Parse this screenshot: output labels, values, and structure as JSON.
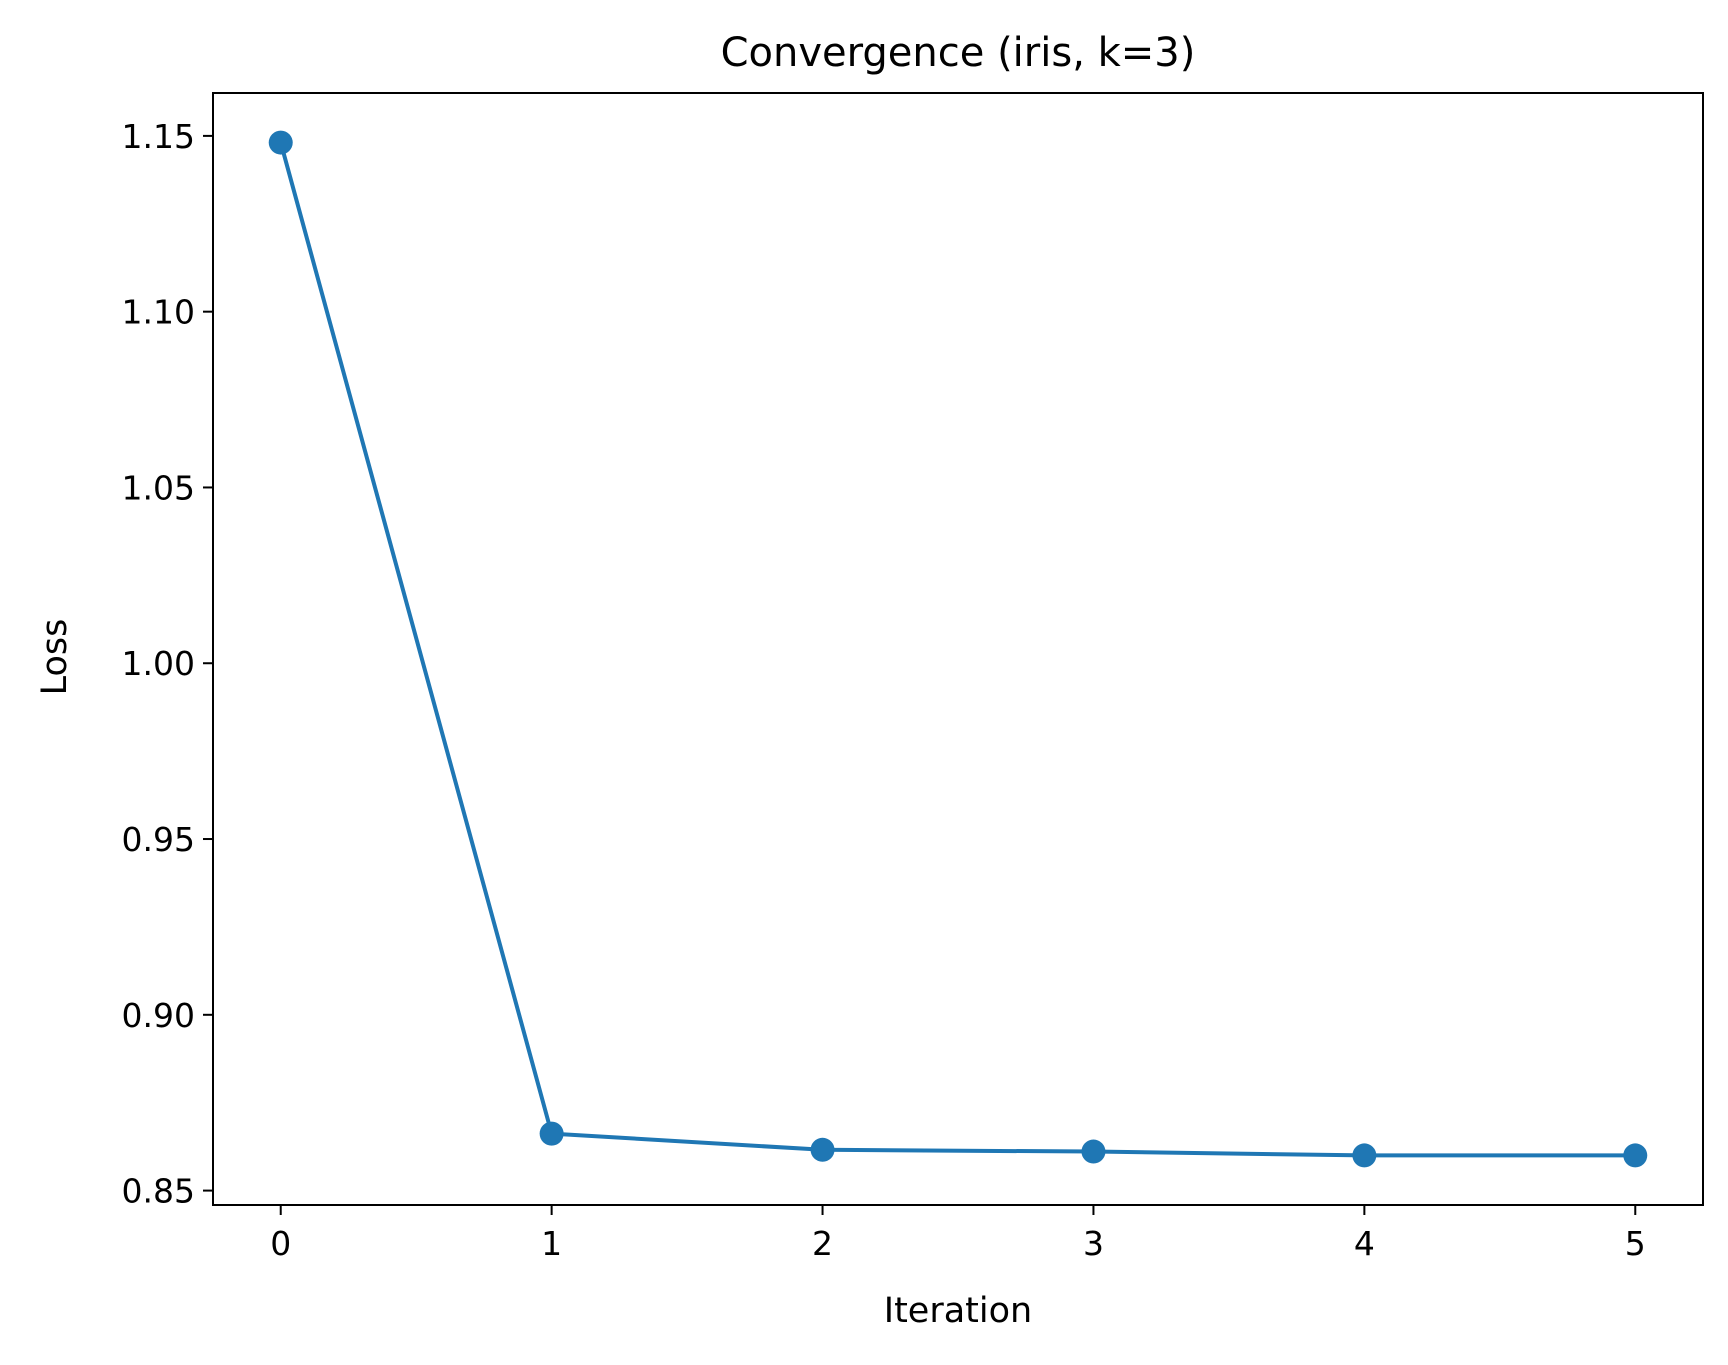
{
  "chart_data": {
    "type": "line",
    "title": "Convergence (iris, k=3)",
    "xlabel": "Iteration",
    "ylabel": "Loss",
    "x": [
      0,
      1,
      2,
      3,
      4,
      5
    ],
    "series": [
      {
        "values": [
          1.1481,
          0.8662,
          0.8616,
          0.8611,
          0.86,
          0.86
        ],
        "color": "#1f77b4",
        "marker": "circle"
      }
    ],
    "xticks": [
      0,
      1,
      2,
      3,
      4,
      5
    ],
    "xtick_labels": [
      "0",
      "1",
      "2",
      "3",
      "4",
      "5"
    ],
    "yticks": [
      0.85,
      0.9,
      0.95,
      1.0,
      1.05,
      1.1,
      1.15
    ],
    "ytick_labels": [
      "0.85",
      "0.90",
      "0.95",
      "1.00",
      "1.05",
      "1.10",
      "1.15"
    ],
    "xlim": [
      -0.25,
      5.25
    ],
    "ylim": [
      0.8459,
      1.1622
    ],
    "grid": false,
    "legend": "none"
  }
}
